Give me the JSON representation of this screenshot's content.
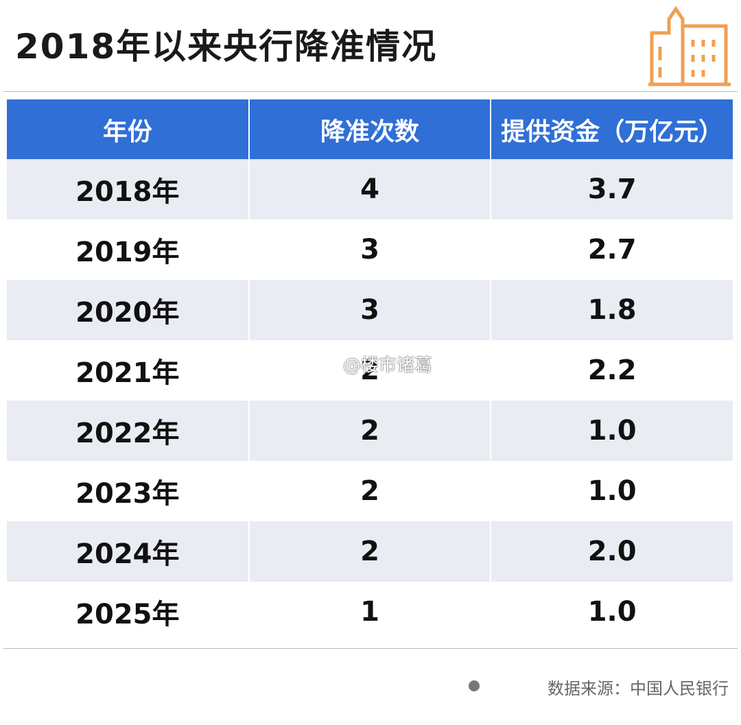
{
  "header": {
    "title": "2018年以来央行降准情况"
  },
  "table": {
    "columns": [
      "年份",
      "降准次数",
      "提供资金（万亿元）"
    ],
    "rows": [
      [
        "2018年",
        "4",
        "3.7"
      ],
      [
        "2019年",
        "3",
        "2.7"
      ],
      [
        "2020年",
        "3",
        "1.8"
      ],
      [
        "2021年",
        "2",
        "2.2"
      ],
      [
        "2022年",
        "2",
        "1.0"
      ],
      [
        "2023年",
        "2",
        "1.0"
      ],
      [
        "2024年",
        "2",
        "2.0"
      ],
      [
        "2025年",
        "1",
        "1.0"
      ]
    ]
  },
  "watermark": "@楼市诸葛",
  "footer": {
    "source": "数据来源：中国人民银行"
  }
}
